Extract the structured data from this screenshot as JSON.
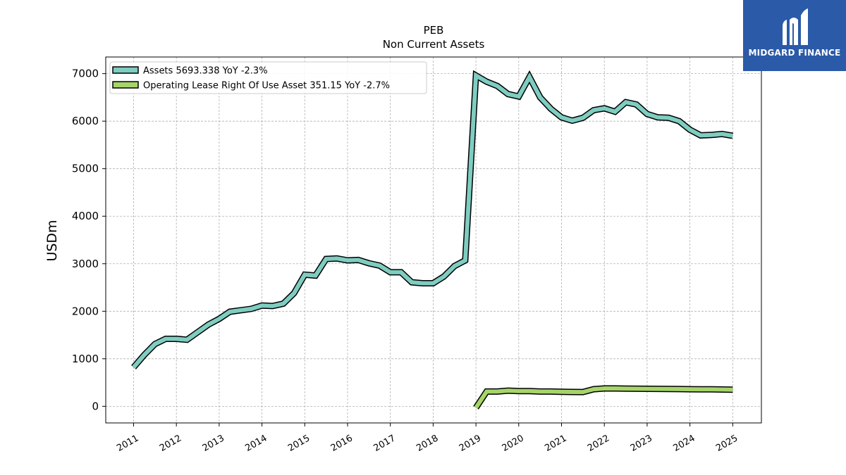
{
  "chart_data": {
    "type": "line",
    "title": "PEB",
    "subtitle": "Non Current  Assets",
    "xlabel": "",
    "ylabel": "USDm",
    "ylim": [
      -350,
      7350
    ],
    "xlim": [
      2010.35,
      2025.67
    ],
    "yticks": [
      0,
      1000,
      2000,
      3000,
      4000,
      5000,
      6000,
      7000
    ],
    "xticks": [
      "2011",
      "2012",
      "2013",
      "2014",
      "2015",
      "2016",
      "2017",
      "2018",
      "2019",
      "2020",
      "2021",
      "2022",
      "2023",
      "2024",
      "2025"
    ],
    "grid": true,
    "legend_position": "top-left",
    "series": [
      {
        "name": "Assets  5693.338 YoY -2.3%",
        "color": "#7ecdc0",
        "x": [
          2011.0,
          2011.25,
          2011.5,
          2011.75,
          2012.0,
          2012.25,
          2012.5,
          2012.75,
          2013.0,
          2013.25,
          2013.5,
          2013.75,
          2014.0,
          2014.25,
          2014.5,
          2014.75,
          2015.0,
          2015.25,
          2015.5,
          2015.75,
          2016.0,
          2016.25,
          2016.5,
          2016.75,
          2017.0,
          2017.25,
          2017.5,
          2017.75,
          2018.0,
          2018.25,
          2018.5,
          2018.75,
          2019.0,
          2019.25,
          2019.5,
          2019.75,
          2020.0,
          2020.25,
          2020.5,
          2020.75,
          2021.0,
          2021.25,
          2021.5,
          2021.75,
          2022.0,
          2022.25,
          2022.5,
          2022.75,
          2023.0,
          2023.25,
          2023.5,
          2023.75,
          2024.0,
          2024.25,
          2024.5,
          2024.75,
          2025.0
        ],
        "values": [
          820,
          1080,
          1310,
          1420,
          1420,
          1400,
          1560,
          1720,
          1840,
          1990,
          2020,
          2050,
          2120,
          2110,
          2160,
          2380,
          2770,
          2750,
          3100,
          3110,
          3070,
          3080,
          3010,
          2960,
          2820,
          2820,
          2610,
          2590,
          2590,
          2730,
          2950,
          3070,
          6960,
          6830,
          6740,
          6570,
          6520,
          6930,
          6500,
          6260,
          6080,
          6010,
          6070,
          6230,
          6270,
          6200,
          6400,
          6350,
          6150,
          6080,
          6070,
          6000,
          5820,
          5700,
          5710,
          5730,
          5693
        ]
      },
      {
        "name": "Operating Lease Right Of Use Asset  351.15 YoY -2.7%",
        "color": "#a6d46a",
        "x": [
          2019.0,
          2019.25,
          2019.5,
          2019.75,
          2020.0,
          2020.25,
          2020.5,
          2020.75,
          2021.0,
          2021.25,
          2021.5,
          2021.75,
          2022.0,
          2022.25,
          2022.5,
          2022.75,
          2023.0,
          2023.25,
          2023.5,
          2023.75,
          2024.0,
          2024.25,
          2024.5,
          2024.75,
          2025.0
        ],
        "values": [
          -30,
          310,
          310,
          330,
          320,
          320,
          310,
          310,
          305,
          302,
          300,
          360,
          375,
          375,
          372,
          370,
          368,
          366,
          364,
          362,
          360,
          358,
          356,
          354,
          351
        ]
      }
    ]
  },
  "logo": {
    "text": "MIDGARD FINANCE"
  }
}
